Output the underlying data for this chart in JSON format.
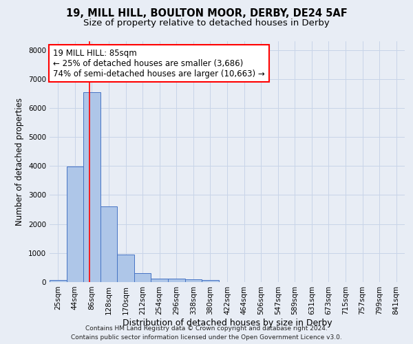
{
  "title1": "19, MILL HILL, BOULTON MOOR, DERBY, DE24 5AF",
  "title2": "Size of property relative to detached houses in Derby",
  "xlabel": "Distribution of detached houses by size in Derby",
  "ylabel": "Number of detached properties",
  "categories": [
    "25sqm",
    "44sqm",
    "86sqm",
    "128sqm",
    "170sqm",
    "212sqm",
    "254sqm",
    "296sqm",
    "338sqm",
    "380sqm",
    "422sqm",
    "464sqm",
    "506sqm",
    "547sqm",
    "589sqm",
    "631sqm",
    "673sqm",
    "715sqm",
    "757sqm",
    "799sqm",
    "841sqm"
  ],
  "bar_values": [
    70,
    3980,
    6550,
    2620,
    960,
    310,
    130,
    110,
    90,
    70,
    0,
    0,
    0,
    0,
    0,
    0,
    0,
    0,
    0,
    0,
    0
  ],
  "bar_color": "#aec6e8",
  "bar_edge_color": "#4472c4",
  "annotation_line1": "19 MILL HILL: 85sqm",
  "annotation_line2": "← 25% of detached houses are smaller (3,686)",
  "annotation_line3": "74% of semi-detached houses are larger (10,663) →",
  "red_line_x": 1.85,
  "annotation_box_color": "white",
  "annotation_box_edge_color": "red",
  "ylim": [
    0,
    8300
  ],
  "yticks": [
    0,
    1000,
    2000,
    3000,
    4000,
    5000,
    6000,
    7000,
    8000
  ],
  "grid_color": "#c8d4e8",
  "background_color": "#e8edf5",
  "footer1": "Contains HM Land Registry data © Crown copyright and database right 2024.",
  "footer2": "Contains public sector information licensed under the Open Government Licence v3.0.",
  "title1_fontsize": 10.5,
  "title2_fontsize": 9.5,
  "xlabel_fontsize": 9,
  "ylabel_fontsize": 8.5,
  "tick_fontsize": 7.5,
  "annotation_fontsize": 8.5,
  "footer_fontsize": 6.5
}
